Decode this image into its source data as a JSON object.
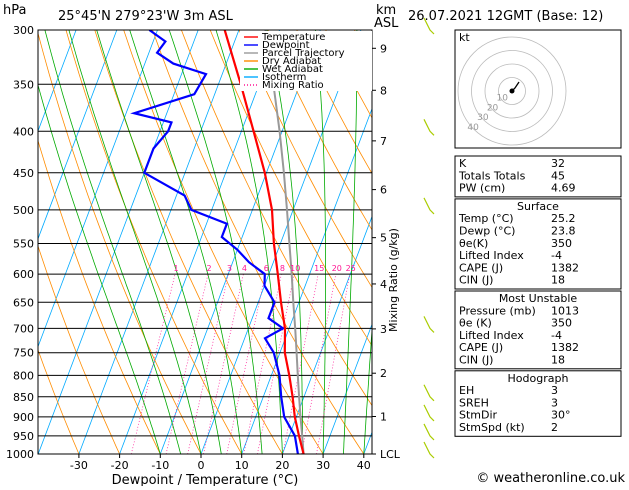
{
  "header": {
    "location": "25°45'N  279°23'W  3m  ASL",
    "datetime": "26.07.2021  12GMT  (Base: 12)",
    "p_unit": "hPa",
    "km_unit": "km",
    "asl": "ASL",
    "credit": "© weatheronline.co.uk"
  },
  "chart_data": {
    "type": "line",
    "title": "Skew-T log-P diagram",
    "xlabel": "Dewpoint / Temperature (°C)",
    "ylabel_right": "Mixing Ratio (g/kg)",
    "x_ticks": [
      "-30",
      "-20",
      "-10",
      "0",
      "10",
      "20",
      "30",
      "40"
    ],
    "pressure_levels": [
      300,
      350,
      400,
      450,
      500,
      550,
      600,
      650,
      700,
      750,
      800,
      850,
      900,
      950,
      1000
    ],
    "km_ticks": [
      {
        "km": "9",
        "p": 316
      },
      {
        "km": "8",
        "p": 356
      },
      {
        "km": "7",
        "p": 411
      },
      {
        "km": "6",
        "p": 472
      },
      {
        "km": "5",
        "p": 541
      },
      {
        "km": "4",
        "p": 617
      },
      {
        "km": "3",
        "p": 701
      },
      {
        "km": "2",
        "p": 795
      },
      {
        "km": "1",
        "p": 899
      },
      {
        "km": "LCL",
        "p": 1000
      }
    ],
    "mixing_ratio_labels": [
      "1",
      "2",
      "3",
      "4",
      "6",
      "8",
      "10",
      "15",
      "20",
      "25"
    ],
    "legend": [
      "Temperature",
      "Dewpoint",
      "Parcel Trajectory",
      "Dry Adiabat",
      "Wet Adiabat",
      "Isotherm",
      "Mixing Ratio"
    ],
    "legend_colors": [
      "#ff0000",
      "#0000ff",
      "#999999",
      "#ff8c00",
      "#00aa00",
      "#00aaff",
      "#ff1493"
    ],
    "series": [
      {
        "name": "Temperature",
        "color": "#ff0000",
        "points": [
          [
            1000,
            25.2
          ],
          [
            950,
            22.4
          ],
          [
            900,
            19.6
          ],
          [
            850,
            17.2
          ],
          [
            800,
            14.4
          ],
          [
            750,
            11.2
          ],
          [
            700,
            9.0
          ],
          [
            650,
            5.6
          ],
          [
            600,
            2.2
          ],
          [
            550,
            -1.6
          ],
          [
            500,
            -5.2
          ],
          [
            450,
            -10.4
          ],
          [
            400,
            -17.0
          ],
          [
            350,
            -24.5
          ],
          [
            300,
            -33.5
          ]
        ]
      },
      {
        "name": "Dewpoint",
        "color": "#0000ff",
        "points": [
          [
            1000,
            23.8
          ],
          [
            950,
            21.4
          ],
          [
            900,
            17.0
          ],
          [
            850,
            14.4
          ],
          [
            800,
            12.0
          ],
          [
            750,
            8.5
          ],
          [
            720,
            5.0
          ],
          [
            700,
            8.5
          ],
          [
            680,
            4.0
          ],
          [
            650,
            4.0
          ],
          [
            620,
            0.0
          ],
          [
            600,
            -1.0
          ],
          [
            580,
            -6.0
          ],
          [
            560,
            -10.0
          ],
          [
            540,
            -15.0
          ],
          [
            520,
            -15.0
          ],
          [
            500,
            -25.0
          ],
          [
            480,
            -28.0
          ],
          [
            450,
            -40.0
          ],
          [
            420,
            -40.0
          ],
          [
            400,
            -38.0
          ],
          [
            390,
            -38.0
          ],
          [
            380,
            -48.0
          ],
          [
            360,
            -35.0
          ],
          [
            340,
            -34.0
          ],
          [
            330,
            -43.0
          ],
          [
            320,
            -48.0
          ],
          [
            310,
            -47.0
          ],
          [
            300,
            -52.0
          ]
        ]
      },
      {
        "name": "Parcel Trajectory",
        "color": "#999999",
        "points": [
          [
            1000,
            25.2
          ],
          [
            950,
            23.2
          ],
          [
            900,
            21.0
          ],
          [
            850,
            18.8
          ],
          [
            800,
            16.5
          ],
          [
            750,
            14.1
          ],
          [
            700,
            11.5
          ],
          [
            650,
            8.6
          ],
          [
            600,
            5.6
          ],
          [
            550,
            2.2
          ],
          [
            500,
            -1.5
          ],
          [
            450,
            -5.7
          ],
          [
            400,
            -10.6
          ],
          [
            350,
            -16.5
          ],
          [
            300,
            -23.5
          ]
        ]
      }
    ]
  },
  "hodograph": {
    "label": "kt",
    "rings": [
      "10",
      "20",
      "30",
      "40"
    ]
  },
  "index_table": [
    {
      "label": "K",
      "value": "32"
    },
    {
      "label": "Totals Totals",
      "value": "45"
    },
    {
      "label": "PW (cm)",
      "value": "4.69"
    }
  ],
  "surface": {
    "title": "Surface",
    "rows": [
      {
        "label": "Temp (°C)",
        "value": "25.2"
      },
      {
        "label": "Dewp (°C)",
        "value": "23.8"
      },
      {
        "label": "θe(K)",
        "value": "350"
      },
      {
        "label": "Lifted Index",
        "value": "-4"
      },
      {
        "label": "CAPE (J)",
        "value": "1382"
      },
      {
        "label": "CIN (J)",
        "value": "18"
      }
    ]
  },
  "most_unstable": {
    "title": "Most Unstable",
    "rows": [
      {
        "label": "Pressure (mb)",
        "value": "1013"
      },
      {
        "label": "θe (K)",
        "value": "350"
      },
      {
        "label": "Lifted Index",
        "value": "-4"
      },
      {
        "label": "CAPE (J)",
        "value": "1382"
      },
      {
        "label": "CIN (J)",
        "value": "18"
      }
    ]
  },
  "hodo_table": {
    "title": "Hodograph",
    "rows": [
      {
        "label": "EH",
        "value": "3"
      },
      {
        "label": "SREH",
        "value": "3"
      },
      {
        "label": "StmDir",
        "value": "30°"
      },
      {
        "label": "StmSpd (kt)",
        "value": "2"
      }
    ]
  }
}
